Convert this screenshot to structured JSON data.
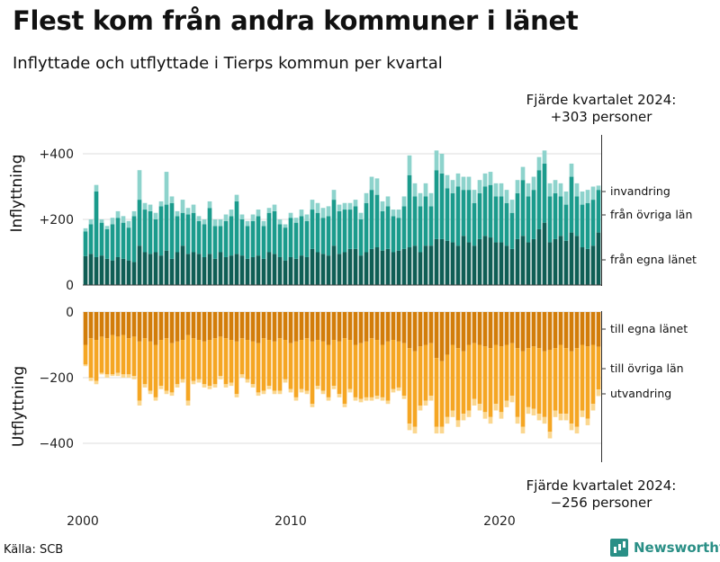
{
  "title": "Flest kom från andra kommuner i länet",
  "subtitle": "Inflyttade och utflyttade i Tierps kommun per kvartal",
  "source": "Källa: SCB",
  "logo": "Newsworthy",
  "colors": {
    "in_own": "#0f5e55",
    "in_other": "#1b9b8c",
    "in_abroad": "#8dd3cc",
    "out_own": "#d27d0a",
    "out_other": "#f5a623",
    "out_abroad": "#fbd78f",
    "grid": "#dddddd",
    "axis": "#333333"
  },
  "chart_data": {
    "type": "bar",
    "stacked": true,
    "x_ticks": [
      "2000",
      "2010",
      "2020"
    ],
    "annotation_top": [
      "Fjärde kvartalet 2024:",
      "+303 personer"
    ],
    "annotation_bottom": [
      "Fjärde kvartalet 2024:",
      "−256 personer"
    ],
    "panels": [
      {
        "key": "in",
        "ylabel": "Inflyttning",
        "ylim": [
          0,
          480
        ],
        "ticks": [
          0,
          200,
          400
        ],
        "tick_labels": [
          "0",
          "+200",
          "+400"
        ],
        "series": [
          {
            "name": "från egna länet",
            "values": [
              88,
              95,
              85,
              90,
              80,
              75,
              85,
              80,
              75,
              70,
              120,
              100,
              95,
              100,
              90,
              105,
              80,
              100,
              120,
              95,
              100,
              95,
              85,
              95,
              80,
              100,
              85,
              90,
              95,
              90,
              80,
              85,
              90,
              80,
              100,
              95,
              85,
              75,
              85,
              80,
              90,
              85,
              110,
              100,
              95,
              90,
              120,
              95,
              100,
              110,
              110,
              90,
              100,
              110,
              115,
              105,
              110,
              100,
              105,
              110,
              115,
              120,
              100,
              120,
              120,
              140,
              140,
              135,
              130,
              120,
              150,
              130,
              120,
              140,
              150,
              145,
              130,
              130,
              120,
              110,
              140,
              150,
              130,
              140,
              170,
              190,
              130,
              140,
              150,
              135,
              160,
              150,
              115,
              110,
              120,
              160
            ]
          },
          {
            "name": "från övriga län",
            "values": [
              75,
              90,
              200,
              100,
              90,
              110,
              120,
              110,
              100,
              140,
              140,
              130,
              130,
              100,
              150,
              140,
              170,
              110,
              100,
              120,
              120,
              100,
              100,
              140,
              100,
              80,
              110,
              120,
              160,
              110,
              100,
              110,
              120,
              100,
              120,
              130,
              100,
              100,
              120,
              110,
              120,
              110,
              120,
              120,
              110,
              120,
              140,
              130,
              130,
              120,
              130,
              110,
              150,
              180,
              160,
              120,
              130,
              110,
              100,
              130,
              220,
              150,
              140,
              150,
              120,
              210,
              200,
              160,
              150,
              180,
              140,
              160,
              130,
              140,
              150,
              160,
              140,
              140,
              130,
              110,
              140,
              170,
              140,
              150,
              180,
              180,
              140,
              140,
              120,
              110,
              170,
              120,
              130,
              140,
              140,
              130
            ]
          },
          {
            "name": "invandring",
            "values": [
              10,
              15,
              20,
              10,
              10,
              20,
              20,
              20,
              20,
              15,
              90,
              20,
              20,
              20,
              15,
              100,
              20,
              15,
              40,
              20,
              25,
              15,
              15,
              20,
              20,
              20,
              20,
              20,
              20,
              15,
              15,
              20,
              20,
              15,
              15,
              20,
              15,
              10,
              15,
              15,
              20,
              20,
              30,
              30,
              30,
              30,
              30,
              20,
              20,
              20,
              20,
              20,
              30,
              40,
              50,
              30,
              30,
              20,
              25,
              30,
              60,
              40,
              40,
              40,
              40,
              60,
              60,
              40,
              40,
              40,
              40,
              40,
              40,
              40,
              40,
              40,
              40,
              40,
              40,
              40,
              40,
              40,
              40,
              40,
              40,
              40,
              40,
              40,
              40,
              40,
              40,
              40,
              40,
              40,
              40,
              13
            ]
          }
        ],
        "series_labels": [
          "invandring",
          "från övriga län",
          "från egna länet"
        ]
      },
      {
        "key": "out",
        "ylabel": "Utflyttning",
        "ylim": [
          -460,
          0
        ],
        "ticks": [
          0,
          -200,
          -400
        ],
        "tick_labels": [
          "0",
          "−200",
          "−400"
        ],
        "series": [
          {
            "name": "till egna länet",
            "values": [
              -100,
              -80,
              -85,
              -75,
              -80,
              -70,
              -75,
              -70,
              -80,
              -75,
              -90,
              -80,
              -90,
              -100,
              -85,
              -80,
              -95,
              -90,
              -85,
              -70,
              -80,
              -85,
              -90,
              -85,
              -80,
              -75,
              -80,
              -85,
              -90,
              -80,
              -85,
              -90,
              -95,
              -80,
              -85,
              -90,
              -80,
              -85,
              -95,
              -90,
              -85,
              -80,
              -90,
              -85,
              -90,
              -100,
              -85,
              -90,
              -80,
              -85,
              -100,
              -95,
              -90,
              -80,
              -85,
              -100,
              -90,
              -85,
              -90,
              -95,
              -110,
              -120,
              -105,
              -100,
              -95,
              -140,
              -150,
              -130,
              -100,
              -110,
              -120,
              -100,
              -95,
              -100,
              -105,
              -110,
              -100,
              -105,
              -100,
              -95,
              -110,
              -120,
              -110,
              -105,
              -110,
              -120,
              -115,
              -110,
              -100,
              -110,
              -120,
              -110,
              -100,
              -105,
              -100,
              -106
            ]
          },
          {
            "name": "till övriga län",
            "values": [
              -60,
              -120,
              -125,
              -110,
              -110,
              -120,
              -110,
              -120,
              -110,
              -120,
              -180,
              -140,
              -150,
              -160,
              -140,
              -160,
              -150,
              -130,
              -120,
              -200,
              -130,
              -120,
              -130,
              -140,
              -140,
              -120,
              -140,
              -130,
              -160,
              -110,
              -120,
              -130,
              -150,
              -160,
              -140,
              -150,
              -160,
              -120,
              -140,
              -170,
              -150,
              -160,
              -190,
              -140,
              -150,
              -160,
              -140,
              -160,
              -200,
              -150,
              -160,
              -170,
              -170,
              -180,
              -170,
              -160,
              -180,
              -150,
              -140,
              -160,
              -230,
              -230,
              -180,
              -170,
              -160,
              -210,
              -200,
              -190,
              -200,
              -220,
              -190,
              -200,
              -170,
              -180,
              -200,
              -210,
              -180,
              -200,
              -170,
              -160,
              -210,
              -230,
              -180,
              -190,
              -200,
              -200,
              -250,
              -190,
              -210,
              -200,
              -220,
              -240,
              -200,
              -220,
              -180,
              -130
            ]
          },
          {
            "name": "utvandring",
            "values": [
              -5,
              -10,
              -10,
              -5,
              -10,
              -5,
              -10,
              -10,
              -10,
              -10,
              -15,
              -10,
              -10,
              -10,
              -10,
              -10,
              -10,
              -10,
              -10,
              -15,
              -10,
              -10,
              -10,
              -10,
              -10,
              -10,
              -10,
              -10,
              -10,
              -10,
              -10,
              -10,
              -10,
              -10,
              -10,
              -10,
              -10,
              -10,
              -10,
              -10,
              -10,
              -10,
              -10,
              -10,
              -10,
              -10,
              -10,
              -10,
              -10,
              -10,
              -10,
              -10,
              -10,
              -10,
              -10,
              -10,
              -10,
              -10,
              -10,
              -10,
              -20,
              -20,
              -15,
              -15,
              -15,
              -20,
              -20,
              -20,
              -20,
              -20,
              -20,
              -20,
              -20,
              -20,
              -20,
              -20,
              -20,
              -20,
              -20,
              -20,
              -20,
              -20,
              -20,
              -20,
              -20,
              -20,
              -20,
              -20,
              -20,
              -20,
              -20,
              -20,
              -20,
              -20,
              -20,
              -20
            ]
          }
        ],
        "series_labels": [
          "till egna länet",
          "till övriga län",
          "utvandring"
        ]
      }
    ]
  }
}
